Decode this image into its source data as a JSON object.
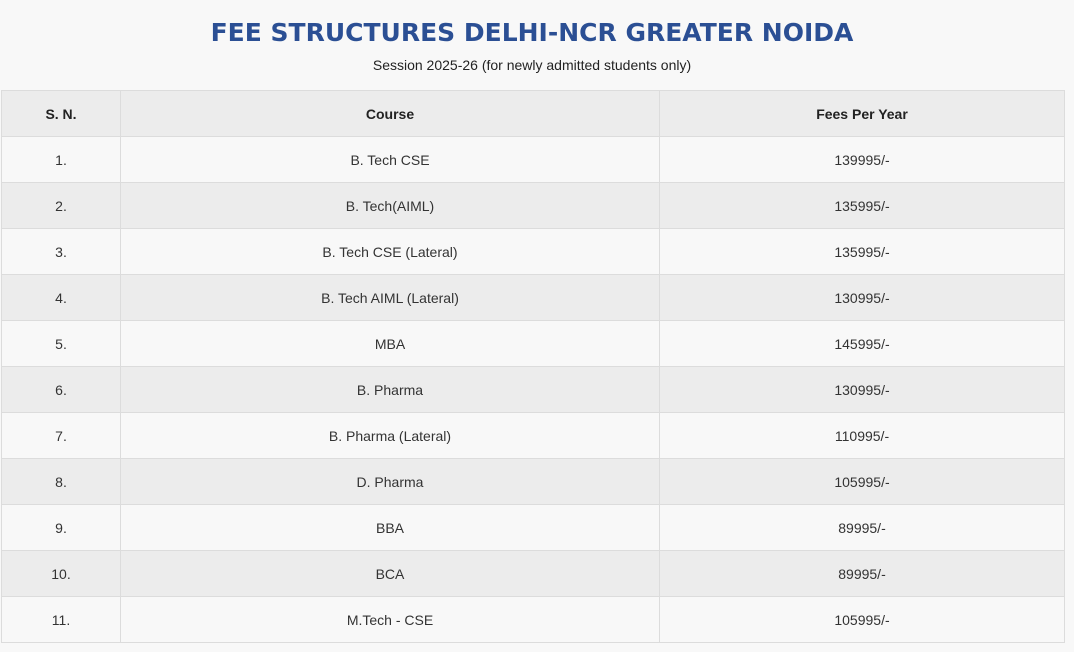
{
  "header": {
    "title": "FEE STRUCTURES DELHI-NCR GREATER NOIDA",
    "subtitle": "Session 2025-26 (for newly admitted students only)"
  },
  "table": {
    "columns": [
      "S. N.",
      "Course",
      "Fees Per Year"
    ],
    "rows": [
      {
        "sn": "1.",
        "course": "B. Tech CSE",
        "fees": "139995/-"
      },
      {
        "sn": "2.",
        "course": "B. Tech(AIML)",
        "fees": "135995/-"
      },
      {
        "sn": "3.",
        "course": "B. Tech CSE (Lateral)",
        "fees": "135995/-"
      },
      {
        "sn": "4.",
        "course": "B. Tech AIML (Lateral)",
        "fees": "130995/-"
      },
      {
        "sn": "5.",
        "course": "MBA",
        "fees": "145995/-"
      },
      {
        "sn": "6.",
        "course": "B. Pharma",
        "fees": "130995/-"
      },
      {
        "sn": "7.",
        "course": "B. Pharma (Lateral)",
        "fees": "110995/-"
      },
      {
        "sn": "8.",
        "course": "D. Pharma",
        "fees": "105995/-"
      },
      {
        "sn": "9.",
        "course": "BBA",
        "fees": "89995/-"
      },
      {
        "sn": "10.",
        "course": "BCA",
        "fees": "89995/-"
      },
      {
        "sn": "11.",
        "course": "M.Tech - CSE",
        "fees": "105995/-"
      }
    ]
  }
}
